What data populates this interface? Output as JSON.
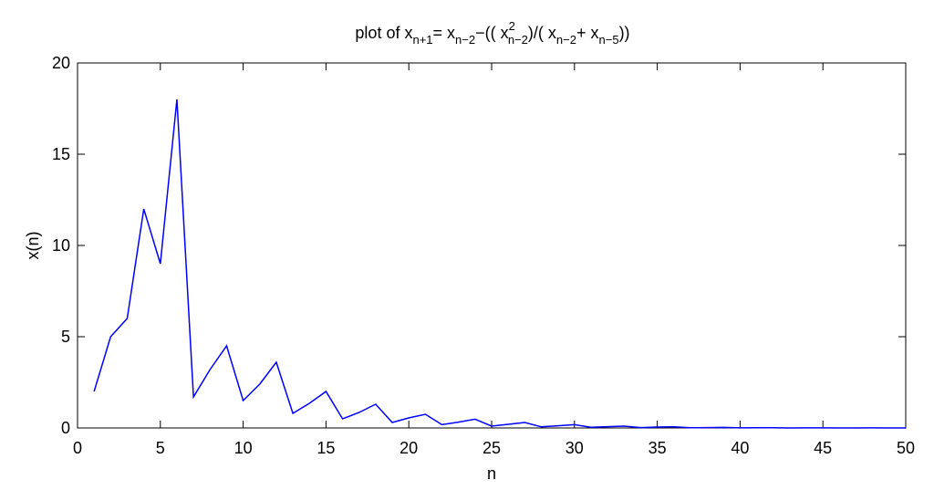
{
  "chart_data": {
    "type": "line",
    "title": {
      "base": "plot of x",
      "sub1": "n+1",
      "mid1": "= x",
      "sub2": "n−2",
      "mid2": "−(( x",
      "sup3": "2",
      "sub3": "n−2",
      "mid3": ")/( x",
      "sub4": "n−2",
      "mid4": "+ x",
      "sub5": "n−5",
      "end": "))"
    },
    "xlabel": "n",
    "ylabel": "x(n)",
    "xlim": [
      0,
      50
    ],
    "ylim": [
      0,
      20
    ],
    "xticks": [
      0,
      5,
      10,
      15,
      20,
      25,
      30,
      35,
      40,
      45,
      50
    ],
    "yticks": [
      0,
      5,
      10,
      15,
      20
    ],
    "grid": false,
    "line_color": "#0000ff",
    "series": [
      {
        "x": [
          1,
          2,
          3,
          4,
          5,
          6,
          7,
          8,
          9,
          10,
          11,
          12,
          13,
          14,
          15,
          16,
          17,
          18,
          19,
          20,
          21,
          22,
          23,
          24,
          25,
          26,
          27,
          28,
          29,
          30,
          31,
          32,
          33,
          34,
          35,
          36,
          37,
          38,
          39,
          40,
          41,
          42,
          43,
          44,
          45,
          46,
          47,
          48,
          49,
          50
        ],
        "values": [
          2,
          5,
          6,
          12,
          9,
          18,
          1.7,
          3.2,
          4.5,
          1.5,
          2.4,
          3.6,
          0.8,
          1.35,
          2.0,
          0.5,
          0.85,
          1.3,
          0.3,
          0.55,
          0.75,
          0.18,
          0.32,
          0.48,
          0.1,
          0.2,
          0.3,
          0.06,
          0.12,
          0.18,
          0.04,
          0.07,
          0.1,
          0.02,
          0.05,
          0.06,
          0.01,
          0.02,
          0.03,
          0.005,
          0.01,
          0.015,
          0.003,
          0.005,
          0.008,
          0.002,
          0.003,
          0.004,
          0.001,
          0.002
        ]
      }
    ]
  }
}
